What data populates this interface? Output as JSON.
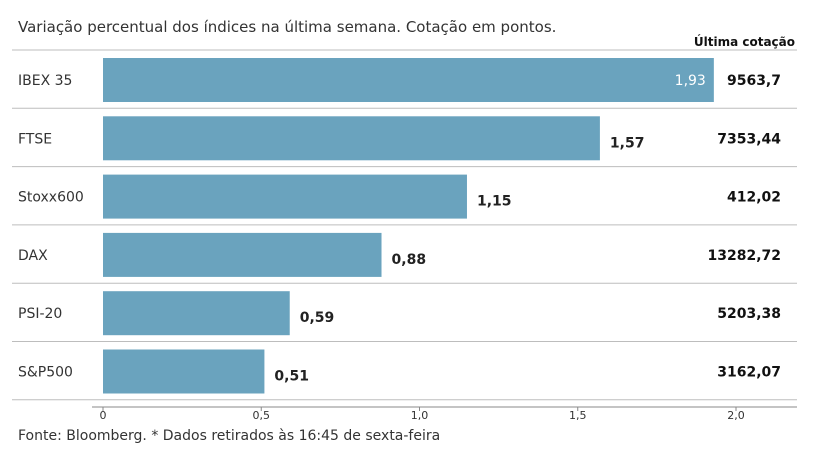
{
  "subtitle": "Variação percentual dos índices na última semana. Cotação em pontos.",
  "column_header": "Última cotação",
  "footer": "Fonte: Bloomberg.  * Dados retirados às 16:45 de sexta-feira",
  "colors": {
    "bar": "#6aa3be",
    "separator": "#bdbdbd",
    "text": "#222222"
  },
  "chart_data": {
    "type": "bar",
    "orientation": "horizontal",
    "categories": [
      "IBEX 35",
      "FTSE",
      "Stoxx600",
      "DAX",
      "PSI-20",
      "S&P500"
    ],
    "values": [
      1.93,
      1.57,
      1.15,
      0.88,
      0.59,
      0.51
    ],
    "value_labels": [
      "1,93",
      "1,57",
      "1,15",
      "0,88",
      "0,59",
      "0,51"
    ],
    "last_quote": [
      "9563,7",
      "7353,44",
      "412,02",
      "13282,72",
      "5203,38",
      "3162,07"
    ],
    "xlim": [
      0,
      2.0
    ],
    "x_ticks": [
      0,
      0.5,
      1.0,
      1.5,
      2.0
    ],
    "x_tick_labels": [
      "0",
      "0,5",
      "1,0",
      "1,5",
      "2,0"
    ],
    "grid": false
  }
}
